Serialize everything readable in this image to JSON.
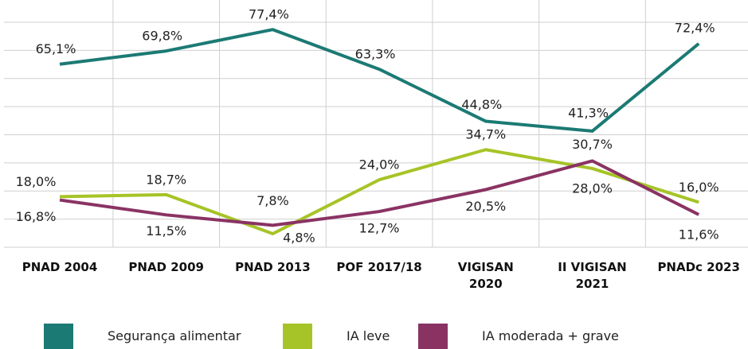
{
  "chart_data": {
    "type": "line",
    "categories": [
      "PNAD 2004",
      "PNAD 2009",
      "PNAD 2013",
      "POF 2017/18",
      "VIGISAN 2020",
      "II VIGISAN 2021",
      "PNADc 2023"
    ],
    "series": [
      {
        "name": "Segurança alimentar",
        "color": "#1c7a74",
        "values": [
          65.1,
          69.8,
          77.4,
          63.3,
          44.8,
          41.3,
          72.4
        ],
        "value_labels": [
          "65,1%",
          "69,8%",
          "77,4%",
          "63,3%",
          "44,8%",
          "41,3%",
          "72,4%"
        ]
      },
      {
        "name": "IA leve",
        "color": "#a6c427",
        "values": [
          18.0,
          18.7,
          4.8,
          24.0,
          34.7,
          28.0,
          16.0
        ],
        "value_labels": [
          "18,0%",
          "18,7%",
          "4,8%",
          "24,0%",
          "34,7%",
          "28,0%",
          "16,0%"
        ]
      },
      {
        "name": "IA moderada + grave",
        "color": "#8a3363",
        "values": [
          16.8,
          11.5,
          7.8,
          12.7,
          20.5,
          30.7,
          11.6
        ],
        "value_labels": [
          "16,8%",
          "11,5%",
          "7,8%",
          "12,7%",
          "20,5%",
          "30,7%",
          "11,6%"
        ]
      }
    ],
    "ylim": [
      0,
      80
    ],
    "yticks": [
      0,
      10,
      20,
      30,
      40,
      50,
      60,
      70,
      80
    ],
    "grid": true,
    "legend": "bottom"
  }
}
